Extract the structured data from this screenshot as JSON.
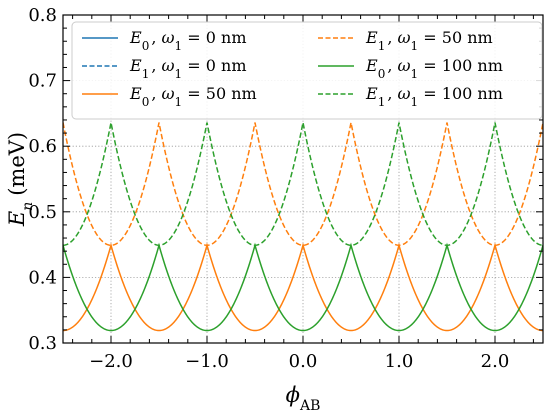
{
  "chart_data": {
    "type": "line",
    "xlabel": "ϕ_AB",
    "ylabel": "E_n (meV)",
    "xlim": [
      -2.5,
      2.5
    ],
    "ylim": [
      0.3,
      0.8
    ],
    "xticks": [
      -2.0,
      -1.0,
      0.0,
      1.0,
      2.0
    ],
    "xtick_labels": [
      "−2.0",
      "−1.0",
      "0.0",
      "1.0",
      "2.0"
    ],
    "yticks": [
      0.3,
      0.4,
      0.5,
      0.6,
      0.7,
      0.8
    ],
    "ytick_labels": [
      "0.3",
      "0.4",
      "0.5",
      "0.6",
      "0.7",
      "0.8"
    ],
    "grid": true,
    "legend_placement": "top",
    "legend_columns": 2,
    "series": [
      {
        "name": "E0, ω1 = 0 nm",
        "name_parts": {
          "sym": "E",
          "sub": "0",
          "omega": "ω",
          "omega_sub": "1",
          "value": " = 0 nm"
        },
        "color": "#1f77b4",
        "dash": "solid",
        "visible_in_plot": false,
        "period": 1.0,
        "min_at": 0.0,
        "min": 0.319,
        "max": 0.449
      },
      {
        "name": "E1, ω1 = 0 nm",
        "name_parts": {
          "sym": "E",
          "sub": "1",
          "omega": "ω",
          "omega_sub": "1",
          "value": " = 0 nm"
        },
        "color": "#1f77b4",
        "dash": "dashed",
        "visible_in_plot": false,
        "period": 1.0,
        "min_at": 0.5,
        "min": 0.449,
        "max": 0.636
      },
      {
        "name": "E0, ω1 = 50 nm",
        "name_parts": {
          "sym": "E",
          "sub": "0",
          "omega": "ω",
          "omega_sub": "1",
          "value": " = 50 nm"
        },
        "color": "#ff7f0e",
        "dash": "solid",
        "visible_in_plot": true,
        "period": 1.0,
        "min_at": 0.5,
        "min": 0.319,
        "max": 0.449
      },
      {
        "name": "E1, ω1 = 50 nm",
        "name_parts": {
          "sym": "E",
          "sub": "1",
          "omega": "ω",
          "omega_sub": "1",
          "value": " = 50 nm"
        },
        "color": "#ff7f0e",
        "dash": "dashed",
        "visible_in_plot": true,
        "period": 1.0,
        "min_at": 0.0,
        "min": 0.449,
        "max": 0.636
      },
      {
        "name": "E0, ω1 = 100 nm",
        "name_parts": {
          "sym": "E",
          "sub": "0",
          "omega": "ω",
          "omega_sub": "1",
          "value": " = 100 nm"
        },
        "color": "#2ca02c",
        "dash": "solid",
        "visible_in_plot": true,
        "period": 1.0,
        "min_at": 0.0,
        "min": 0.319,
        "max": 0.449
      },
      {
        "name": "E1, ω1 = 100 nm",
        "name_parts": {
          "sym": "E",
          "sub": "1",
          "omega": "ω",
          "omega_sub": "1",
          "value": " = 100 nm"
        },
        "color": "#2ca02c",
        "dash": "dashed",
        "visible_in_plot": true,
        "period": 1.0,
        "min_at": 0.5,
        "min": 0.449,
        "max": 0.636
      }
    ]
  }
}
